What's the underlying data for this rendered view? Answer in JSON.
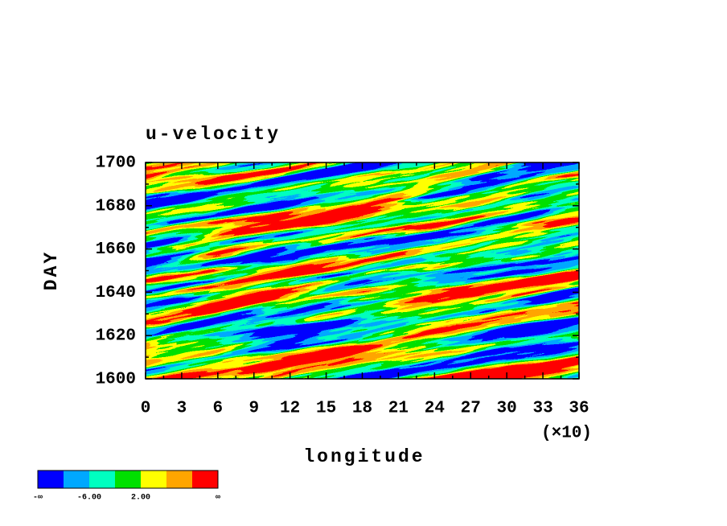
{
  "chart_data": {
    "type": "contour",
    "title": "u-velocity",
    "x_label": "longitude",
    "y_label": "DAY",
    "x_multiplier_label": "(×10)",
    "xlim": [
      0,
      36
    ],
    "xticks": [
      0,
      3,
      6,
      9,
      12,
      15,
      18,
      21,
      24,
      27,
      30,
      33,
      36
    ],
    "ylim": [
      1600,
      1700
    ],
    "yticks": [
      1600,
      1620,
      1640,
      1660,
      1680,
      1700
    ],
    "colorbar": {
      "colors": [
        "#0000ff",
        "#00a8ff",
        "#00ffc0",
        "#00e000",
        "#ffff00",
        "#ffa500",
        "#ff0000"
      ],
      "levels": [
        "-∞",
        null,
        "-6.00",
        null,
        "2.00",
        null,
        null,
        "∞"
      ]
    }
  }
}
